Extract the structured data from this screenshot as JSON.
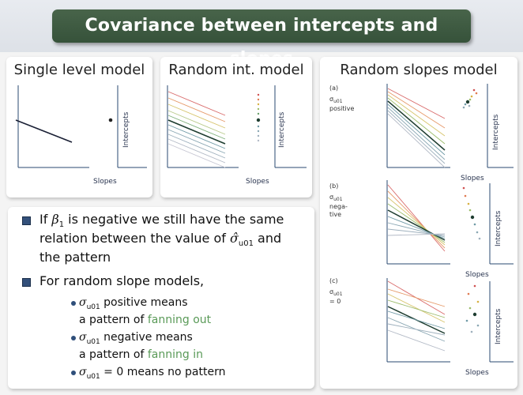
{
  "title": "Covariance between intercepts and slopes",
  "panels": {
    "single": {
      "title": "Single level model",
      "xlabel": "Slopes",
      "ylabel": "Intercepts"
    },
    "random_int": {
      "title": "Random int. model",
      "xlabel": "Slopes",
      "ylabel": "Intercepts"
    },
    "random_slopes": {
      "title": "Random slopes model",
      "cases": [
        {
          "tag": "(a)",
          "sigma": "σ",
          "sub": "u01",
          "desc1": "positive",
          "desc2": "",
          "xlabel": "Slopes",
          "ylabel": "Intercepts"
        },
        {
          "tag": "(b)",
          "sigma": "σ",
          "sub": "u01",
          "desc1": "nega-",
          "desc2": "tive",
          "xlabel": "Slopes",
          "ylabel": "Intercepts"
        },
        {
          "tag": "(c)",
          "sigma": "σ",
          "sub": "u01",
          "desc1": "= 0",
          "desc2": "",
          "xlabel": "Slopes",
          "ylabel": "Intercepts"
        }
      ]
    }
  },
  "bullets": {
    "b1": {
      "line1_pre": "If ",
      "beta": "β",
      "beta_sub": "1",
      "line1_post": " is negative we still have the same",
      "line2_pre": "relation between the value of ",
      "sigma_hat": "σ̂",
      "sigma_sub": "u01",
      "line2_post": " and",
      "line3": "the pattern"
    },
    "b2": {
      "line1": "For random slope models,",
      "s1_sym": "σ",
      "s1_sub": "u01",
      "s1_text": " positive means",
      "s1_line2_pre": "a pattern of ",
      "s1_green": "fanning out",
      "s2_sym": "σ",
      "s2_sub": "u01",
      "s2_text": " negative means",
      "s2_line2_pre": "a pattern of ",
      "s2_green": "fanning in",
      "s3_sym": "σ",
      "s3_sub": "u01",
      "s3_text": " = 0 means no pattern"
    }
  },
  "colors": {
    "header_green": "#3e5b41",
    "axis_blue": "#2a4a70",
    "fan_green": "#5a9a58"
  }
}
